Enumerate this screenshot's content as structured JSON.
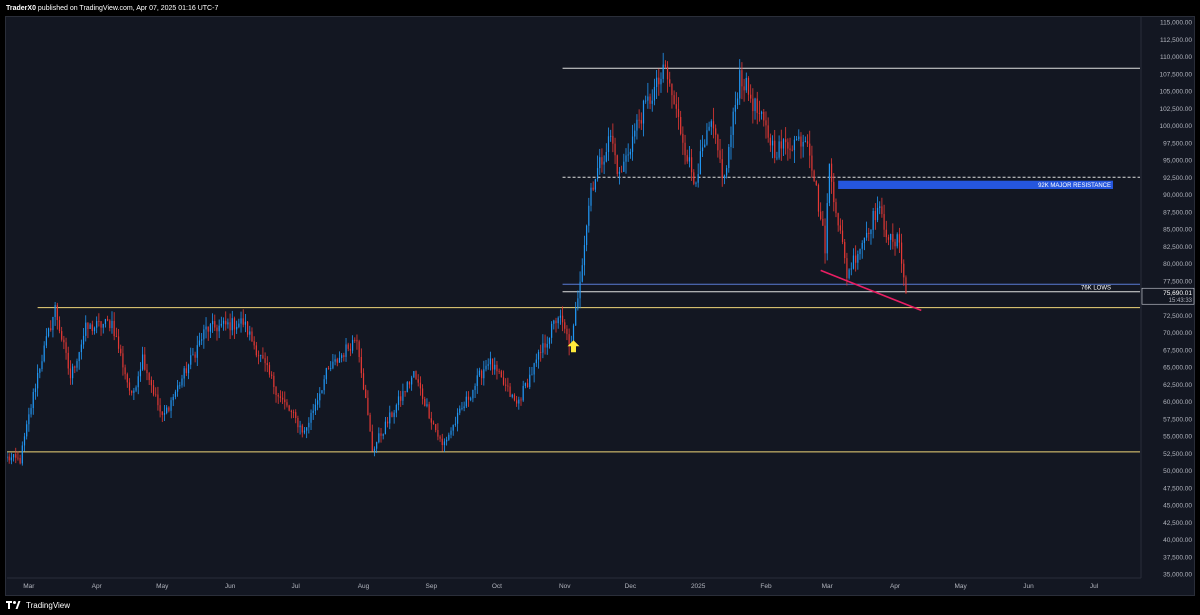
{
  "header": {
    "author": "TraderX0",
    "text": " published on TradingView.com, Apr 07, 2025 01:16 UTC-7"
  },
  "footer": {
    "brand": "TradingView"
  },
  "colors": {
    "background": "#131722",
    "up_candle": "#2196f3",
    "down_candle": "#e53935",
    "resistance_box": "#2962ff",
    "trendline": "#e91e63",
    "support_lines": "#f0d77a",
    "arrow": "#ffeb3b",
    "axis_text": "#b2b5be"
  },
  "chart_data": {
    "type": "candlestick",
    "symbol": "BTC",
    "yaxis": {
      "ylim": [
        35000,
        115000
      ],
      "ticks": [
        "115,000.00",
        "112,500.00",
        "110,000.00",
        "107,500.00",
        "105,000.00",
        "102,500.00",
        "100,000.00",
        "97,500.00",
        "95,000.00",
        "92,500.00",
        "90,000.00",
        "87,500.00",
        "85,000.00",
        "82,500.00",
        "80,000.00",
        "77,500.00",
        "75,000.00",
        "72,500.00",
        "70,000.00",
        "67,500.00",
        "65,000.00",
        "62,500.00",
        "60,000.00",
        "57,500.00",
        "55,000.00",
        "52,500.00",
        "50,000.00",
        "47,500.00",
        "45,000.00",
        "42,500.00",
        "40,000.00",
        "37,500.00",
        "35,000.00"
      ],
      "tick_values": [
        115000,
        112500,
        110000,
        107500,
        105000,
        102500,
        100000,
        97500,
        95000,
        92500,
        90000,
        87500,
        85000,
        82500,
        80000,
        77500,
        75000,
        72500,
        70000,
        67500,
        65000,
        62500,
        60000,
        57500,
        55000,
        52500,
        50000,
        47500,
        45000,
        42500,
        40000,
        37500,
        35000
      ]
    },
    "xaxis": {
      "start": "2024-02-20",
      "end": "2025-07-22",
      "labels": [
        {
          "text": "Mar",
          "date": "2024-03-01"
        },
        {
          "text": "Apr",
          "date": "2024-04-01"
        },
        {
          "text": "May",
          "date": "2024-05-01"
        },
        {
          "text": "Jun",
          "date": "2024-06-01"
        },
        {
          "text": "Jul",
          "date": "2024-07-01"
        },
        {
          "text": "Aug",
          "date": "2024-08-01"
        },
        {
          "text": "Sep",
          "date": "2024-09-01"
        },
        {
          "text": "Oct",
          "date": "2024-10-01"
        },
        {
          "text": "Nov",
          "date": "2024-11-01"
        },
        {
          "text": "Dec",
          "date": "2024-12-01"
        },
        {
          "text": "2025",
          "date": "2025-01-01"
        },
        {
          "text": "Feb",
          "date": "2025-02-01"
        },
        {
          "text": "Mar",
          "date": "2025-03-01"
        },
        {
          "text": "Apr",
          "date": "2025-04-01"
        },
        {
          "text": "May",
          "date": "2025-05-01"
        },
        {
          "text": "Jun",
          "date": "2025-06-01"
        },
        {
          "text": "Jul",
          "date": "2025-07-01"
        }
      ]
    },
    "price_path": [
      [
        "2024-02-20",
        51800
      ],
      [
        "2024-02-26",
        51500
      ],
      [
        "2024-03-05",
        64000
      ],
      [
        "2024-03-13",
        73500
      ],
      [
        "2024-03-20",
        63500
      ],
      [
        "2024-03-27",
        70500
      ],
      [
        "2024-04-08",
        71500
      ],
      [
        "2024-04-17",
        60500
      ],
      [
        "2024-04-22",
        66500
      ],
      [
        "2024-05-01",
        57500
      ],
      [
        "2024-05-21",
        70500
      ],
      [
        "2024-06-07",
        71500
      ],
      [
        "2024-06-24",
        60500
      ],
      [
        "2024-07-05",
        55500
      ],
      [
        "2024-07-15",
        64000
      ],
      [
        "2024-07-29",
        69500
      ],
      [
        "2024-08-05",
        53000
      ],
      [
        "2024-08-24",
        64000
      ],
      [
        "2024-09-06",
        53500
      ],
      [
        "2024-09-27",
        66000
      ],
      [
        "2024-10-10",
        59500
      ],
      [
        "2024-10-29",
        72500
      ],
      [
        "2024-11-04",
        67800
      ],
      [
        "2024-11-13",
        91000
      ],
      [
        "2024-11-22",
        98500
      ],
      [
        "2024-11-26",
        92500
      ],
      [
        "2024-12-05",
        101000
      ],
      [
        "2024-12-17",
        108000
      ],
      [
        "2024-12-30",
        92000
      ],
      [
        "2025-01-07",
        100000
      ],
      [
        "2025-01-13",
        92000
      ],
      [
        "2025-01-20",
        107500
      ],
      [
        "2025-01-28",
        102000
      ],
      [
        "2025-02-05",
        96500
      ],
      [
        "2025-02-20",
        98500
      ],
      [
        "2025-02-28",
        82500
      ],
      [
        "2025-03-02",
        94000
      ],
      [
        "2025-03-10",
        78500
      ],
      [
        "2025-03-24",
        88000
      ],
      [
        "2025-03-31",
        82500
      ],
      [
        "2025-04-03",
        83500
      ],
      [
        "2025-04-06",
        75690
      ]
    ],
    "horizontal_levels": [
      {
        "price": 108300,
        "from": "2024-10-31",
        "to": "2025-07-22",
        "style": "solid",
        "color": "#e0e0e0"
      },
      {
        "price": 92500,
        "from": "2024-10-31",
        "to": "2025-07-22",
        "style": "dashed",
        "color": "#e0e0e0"
      },
      {
        "price": 77000,
        "from": "2024-10-31",
        "to": "2025-07-22",
        "style": "solid",
        "color": "#5b7bd5"
      },
      {
        "price": 75900,
        "from": "2024-10-31",
        "to": "2025-07-22",
        "style": "solid",
        "color": "#e0e0e0"
      },
      {
        "price": 73600,
        "from": "2024-03-05",
        "to": "2025-07-31",
        "style": "solid",
        "color": "#f0d77a"
      },
      {
        "price": 52700,
        "from": "2024-02-20",
        "to": "2025-07-31",
        "style": "solid",
        "color": "#f0d77a"
      }
    ],
    "zones": [
      {
        "label": "92K MAJOR RESISTANCE",
        "top": 92000,
        "bottom": 90800,
        "from": "2025-03-06",
        "to": "2025-07-22"
      }
    ],
    "level_labels": [
      {
        "label": "76K LOWS",
        "price": 76500
      }
    ],
    "trendline": {
      "from": [
        "2025-02-26",
        79000
      ],
      "to": [
        "2025-04-13",
        73200
      ]
    },
    "arrow": {
      "date": "2024-11-05",
      "price": 68000
    },
    "last_price": {
      "value": "75,690.01",
      "countdown": "15:43:33",
      "price": 75690
    }
  }
}
